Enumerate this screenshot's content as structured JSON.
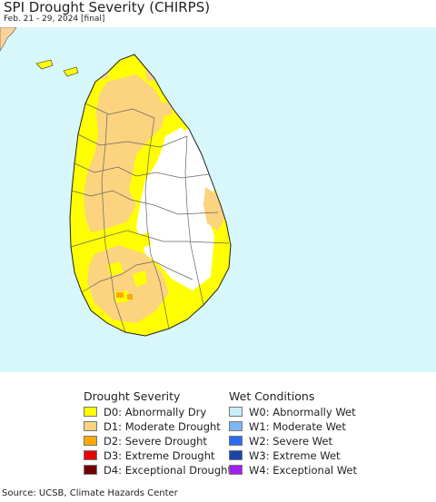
{
  "header": {
    "title": "SPI Drought Severity (CHIRPS)",
    "subtitle": "Feb. 21 - 29, 2024 [final]"
  },
  "map": {
    "water_color": "#d8f7fa",
    "neighbor_land_color": "#fbd29c",
    "no_drought_color": "#ffffff",
    "boundary_color": "#555555"
  },
  "legend": {
    "drought_heading": "Drought Severity",
    "drought_items": [
      {
        "label": "D0: Abnormally Dry",
        "color": "#ffff00"
      },
      {
        "label": "D1: Moderate Drought",
        "color": "#fcd37f"
      },
      {
        "label": "D2: Severe Drought",
        "color": "#ffaa00"
      },
      {
        "label": "D3: Extreme Drought",
        "color": "#e60000"
      },
      {
        "label": "D4: Exceptional Drought",
        "color": "#730000"
      }
    ],
    "wet_heading": "Wet Conditions",
    "wet_items": [
      {
        "label": "W0: Abnormally Wet",
        "color": "#c6effd"
      },
      {
        "label": "W1: Moderate Wet",
        "color": "#7fb6f5"
      },
      {
        "label": "W2: Severe Wet",
        "color": "#2b6cf0"
      },
      {
        "label": "W3: Extreme Wet",
        "color": "#1746a8"
      },
      {
        "label": "W4: Exceptional Wet",
        "color": "#a020f0"
      }
    ]
  },
  "footer": {
    "source": "Source: UCSB, Climate Hazards Center"
  }
}
